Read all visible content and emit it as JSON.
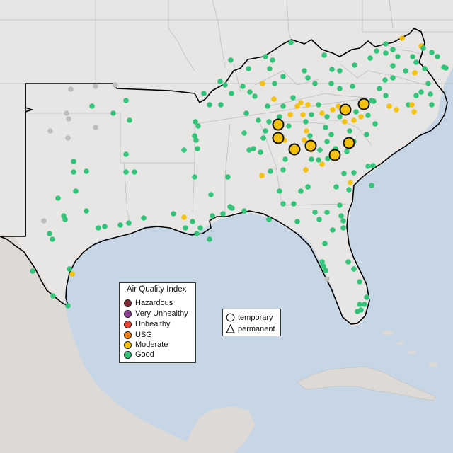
{
  "map": {
    "colors": {
      "ocean": "#c6d6e4",
      "land": "#e8e6e4",
      "state_border": "#bdbdbd",
      "region_border": "#000000",
      "mexico": "#ddd9d4"
    },
    "aqi_colors": {
      "Hazardous": "#7e2a33",
      "Very Unhealthy": "#8f3f97",
      "Unhealthy": "#e8412f",
      "USG": "#f07e14",
      "Moderate": "#f4c20d",
      "Good": "#33c47a",
      "No data": "#bdbdbd"
    }
  },
  "legend": {
    "title": "Air Quality Index",
    "items": [
      {
        "label": "Hazardous",
        "color": "#7e2a33"
      },
      {
        "label": "Very Unhealthy",
        "color": "#8f3f97"
      },
      {
        "label": "Unhealthy",
        "color": "#e8412f"
      },
      {
        "label": "USG",
        "color": "#f07e14"
      },
      {
        "label": "Moderate",
        "color": "#f4c20d"
      },
      {
        "label": "Good",
        "color": "#33c47a"
      }
    ]
  },
  "monitor_types": {
    "temporary": "temporary",
    "permanent": "permanent"
  }
}
